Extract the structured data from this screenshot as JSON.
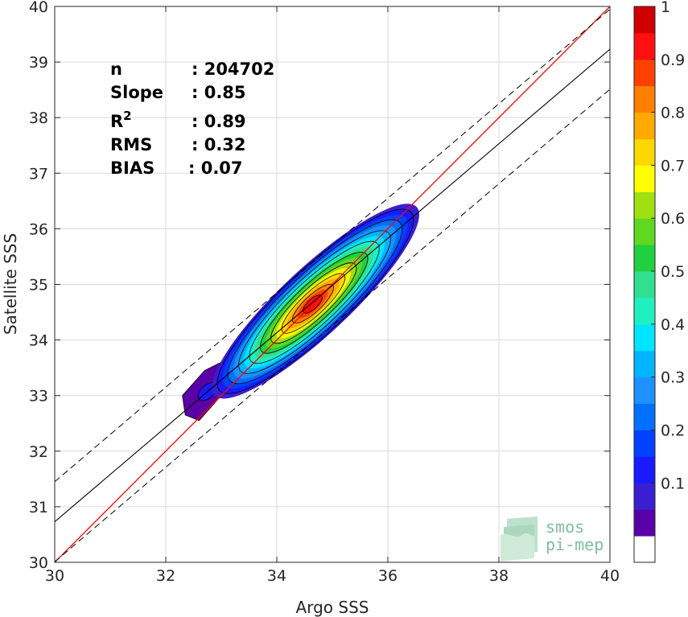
{
  "chart_data": {
    "type": "density-scatter",
    "xlabel": "Argo SSS",
    "ylabel": "Satellite SSS",
    "xlim": [
      30,
      40
    ],
    "ylim": [
      30,
      40
    ],
    "xticks": [
      "30",
      "32",
      "34",
      "36",
      "38",
      "40"
    ],
    "yticks": [
      "30",
      "31",
      "32",
      "33",
      "34",
      "35",
      "36",
      "37",
      "38",
      "39",
      "40"
    ],
    "grid": true,
    "stats": [
      {
        "label": "n",
        "value": ": 204702"
      },
      {
        "label": "Slope",
        "value": ": 0.85"
      },
      {
        "label": "R",
        "sup": "2",
        "value": ": 0.89"
      },
      {
        "label": "RMS",
        "value": ": 0.32"
      },
      {
        "label": "BIAS",
        "value": ": 0.07"
      }
    ],
    "identity_line": {
      "color": "#ff0000",
      "slope": 1,
      "intercept": 0
    },
    "regression_line": {
      "color": "#000000",
      "slope": 0.85,
      "intercept_at_30": 30.73
    },
    "confidence_lines": {
      "style": "dashed",
      "offset": 0.72
    },
    "density_peak": {
      "x": 34.7,
      "y": 34.7
    },
    "density_extent": {
      "x": [
        32.3,
        36.4
      ],
      "y": [
        32.6,
        36.3
      ]
    },
    "colorbar": {
      "ticks": [
        "0.1",
        "0.2",
        "0.3",
        "0.4",
        "0.5",
        "0.6",
        "0.7",
        "0.8",
        "0.9",
        "1"
      ],
      "levels": 20,
      "colors": [
        "#5a00a8",
        "#3a1fd0",
        "#1a1aff",
        "#0040ff",
        "#0070ff",
        "#1e90ff",
        "#00b4ff",
        "#00e5ff",
        "#20f0c0",
        "#30e090",
        "#20d040",
        "#60d820",
        "#a0e010",
        "#ffff00",
        "#ffd700",
        "#ffaa00",
        "#ff8000",
        "#ff4000",
        "#ff1010",
        "#d00000",
        "#900000"
      ]
    }
  },
  "logo": {
    "line1": "smos",
    "line2": "pi-mep"
  }
}
